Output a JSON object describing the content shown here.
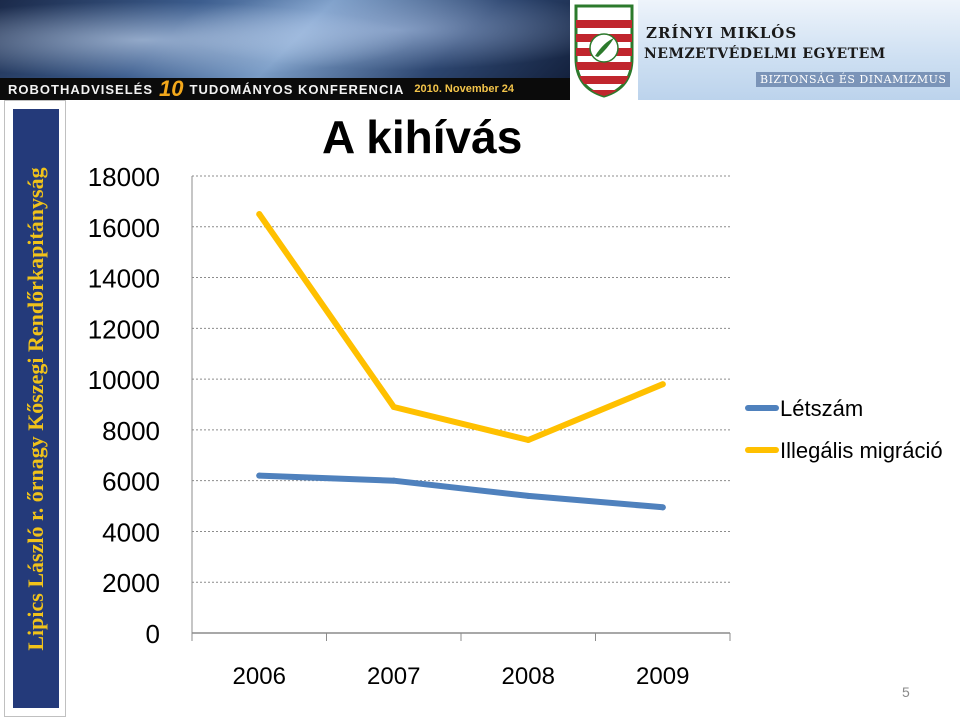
{
  "banner": {
    "conference_left": "ROBOTHADVISELÉS",
    "conference_number": "10",
    "conference_right": "TUDOMÁNYOS KONFERENCIA",
    "conference_date": "2010. November 24",
    "crest_text": "ZRÍNYI MIKLÓS",
    "university_line1": "ZRÍNYI MIKLÓS",
    "university_line2": "NEMZETVÉDELMI EGYETEM",
    "university_slogan": "BIZTONSÁG ÉS DINAMIZMUS"
  },
  "sidebar": {
    "author": "Lipics László r. őrnagy Kőszegi Rendőrkapitányság"
  },
  "slide": {
    "title": "A kihívás",
    "page_number": "5"
  },
  "colors": {
    "letszam": "#4f81bd",
    "illegalis": "#ffc000",
    "gridline": "#8c8c8c",
    "sidebar_bg": "#243a7a",
    "sidebar_text": "#f0c21a"
  },
  "chart_data": {
    "type": "line",
    "title": "A kihívás",
    "categories": [
      "2006",
      "2007",
      "2008",
      "2009"
    ],
    "series": [
      {
        "name": "Létszám",
        "values": [
          6200,
          6000,
          5400,
          4950
        ]
      },
      {
        "name": "Illegális migráció",
        "values": [
          16500,
          8900,
          7600,
          9800
        ]
      }
    ],
    "ylim": [
      0,
      18000
    ],
    "yticks": [
      "0",
      "2000",
      "4000",
      "6000",
      "8000",
      "10000",
      "12000",
      "14000",
      "16000",
      "18000"
    ],
    "grid": true,
    "legend": "right"
  }
}
